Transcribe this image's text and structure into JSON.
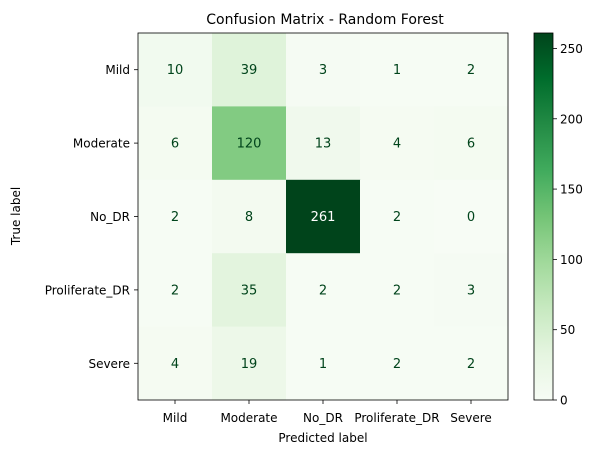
{
  "chart_data": {
    "type": "heatmap",
    "title": "Confusion Matrix - Random Forest",
    "xlabel": "Predicted label",
    "ylabel": "True label",
    "x_categories": [
      "Mild",
      "Moderate",
      "No_DR",
      "Proliferate_DR",
      "Severe"
    ],
    "y_categories": [
      "Mild",
      "Moderate",
      "No_DR",
      "Proliferate_DR",
      "Severe"
    ],
    "values": [
      [
        10,
        39,
        3,
        1,
        2
      ],
      [
        6,
        120,
        13,
        4,
        6
      ],
      [
        2,
        8,
        261,
        2,
        0
      ],
      [
        2,
        35,
        2,
        2,
        3
      ],
      [
        4,
        19,
        1,
        2,
        2
      ]
    ],
    "colormap": "Greens",
    "colorbar": {
      "range": [
        0,
        261
      ],
      "ticks": [
        0,
        50,
        100,
        150,
        200,
        250
      ]
    },
    "colors": {
      "low": "#f7fcf5",
      "high": "#00441b",
      "light_text": "#ffffff",
      "dark_text": "#00441b"
    }
  }
}
